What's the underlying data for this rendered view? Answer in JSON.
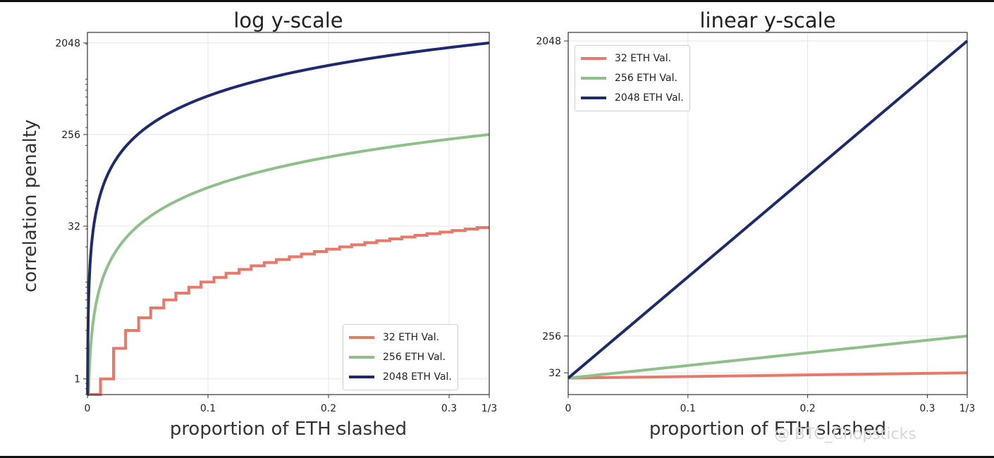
{
  "chart_data": [
    {
      "type": "line",
      "title": "log y-scale",
      "xlabel": "proportion of ETH slashed",
      "ylabel": "correlation penalty",
      "yscale": "log2",
      "xlim": [
        0,
        0.3333
      ],
      "ylim": [
        0.7,
        2600
      ],
      "xticks": [
        {
          "value": 0,
          "label": "0"
        },
        {
          "value": 0.1,
          "label": "0.1"
        },
        {
          "value": 0.2,
          "label": "0.2"
        },
        {
          "value": 0.3,
          "label": "0.3"
        },
        {
          "value": 0.3333,
          "label": "1/3"
        }
      ],
      "yticks": [
        {
          "value": 1,
          "label": "1"
        },
        {
          "value": 32,
          "label": "32"
        },
        {
          "value": 256,
          "label": "256"
        },
        {
          "value": 2048,
          "label": "2048"
        }
      ],
      "grid": true,
      "legend_position": "bottom-right",
      "series": [
        {
          "name": "32 ETH Val.",
          "color": "#e8796a",
          "style": "step",
          "balance": 32,
          "x": [
            0,
            0.01,
            0.02,
            0.03,
            0.05,
            0.1,
            0.2,
            0.3333
          ],
          "y": [
            0,
            1,
            2,
            3,
            5,
            10,
            19,
            32
          ]
        },
        {
          "name": "256 ETH Val.",
          "color": "#8fbf8a",
          "style": "smooth",
          "balance": 256,
          "x": [
            0,
            0.01,
            0.05,
            0.1,
            0.2,
            0.3333
          ],
          "y": [
            0,
            7.7,
            38.4,
            76.8,
            153.6,
            256
          ]
        },
        {
          "name": "2048 ETH Val.",
          "color": "#1f2a6e",
          "style": "smooth",
          "balance": 2048,
          "x": [
            0,
            0.01,
            0.05,
            0.1,
            0.2,
            0.3333
          ],
          "y": [
            0,
            61,
            307,
            614,
            1229,
            2048
          ]
        }
      ]
    },
    {
      "type": "line",
      "title": "linear y-scale",
      "xlabel": "proportion of ETH slashed",
      "ylabel": "",
      "yscale": "linear",
      "xlim": [
        0,
        0.3333
      ],
      "ylim": [
        -100,
        2100
      ],
      "xticks": [
        {
          "value": 0,
          "label": "0"
        },
        {
          "value": 0.1,
          "label": "0.1"
        },
        {
          "value": 0.2,
          "label": "0.2"
        },
        {
          "value": 0.3,
          "label": "0.3"
        },
        {
          "value": 0.3333,
          "label": "1/3"
        }
      ],
      "yticks": [
        {
          "value": 32,
          "label": "32"
        },
        {
          "value": 256,
          "label": "256"
        },
        {
          "value": 2048,
          "label": "2048"
        }
      ],
      "grid": true,
      "legend_position": "top-left",
      "series": [
        {
          "name": "32 ETH Val.",
          "color": "#e8796a",
          "x": [
            0,
            0.3333
          ],
          "y": [
            0,
            32
          ]
        },
        {
          "name": "256 ETH Val.",
          "color": "#8fbf8a",
          "x": [
            0,
            0.3333
          ],
          "y": [
            0,
            256
          ]
        },
        {
          "name": "2048 ETH Val.",
          "color": "#1f2a6e",
          "x": [
            0,
            0.3333
          ],
          "y": [
            0,
            2048
          ]
        }
      ]
    }
  ],
  "watermark": "@ BTC_Chopsticks"
}
